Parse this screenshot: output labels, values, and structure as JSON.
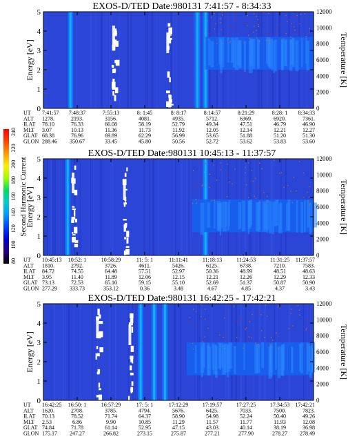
{
  "chart_data": {
    "type": "heatmap",
    "colorbar": {
      "label": "Second Harmonic Current",
      "ticks": [
        "240",
        "220",
        "200",
        "180",
        "160",
        "140",
        "120",
        "100",
        "80"
      ],
      "colors": [
        "#ff0000",
        "#ff4400",
        "#ff9900",
        "#ffee00",
        "#99ff00",
        "#00dd66",
        "#00cccc",
        "#0099ff",
        "#0044ff",
        "#0000cc",
        "#220088",
        "#000000"
      ]
    },
    "panels": [
      {
        "title": "EXOS-D/TED   Date:980131   7:41:57 - 8:34:33",
        "ylabel": "Energy [eV]",
        "y2label": "Temperature [K]",
        "yticks": [
          "0",
          "1",
          "2",
          "3",
          "4",
          "5"
        ],
        "y2ticks": [
          "0",
          "2000",
          "4000",
          "6000",
          "8000",
          "10000",
          "12000"
        ],
        "row_labels": [
          "UT",
          "ALT",
          "ILAT",
          "MLT",
          "GLAT",
          "GLON"
        ],
        "columns": [
          [
            "7:41:57",
            "1278.",
            "78.10",
            "3.07",
            "68.38",
            "288.46"
          ],
          [
            "7:48:37",
            "2193.",
            "76.33",
            "10.13",
            "76.96",
            "350.67"
          ],
          [
            "7:55:13",
            "3156.",
            "66.08",
            "11.36",
            "69.89",
            "33.45"
          ],
          [
            "8: 1:45",
            "4081.",
            "58.19",
            "11.73",
            "62.29",
            "45.80"
          ],
          [
            "8: 8:17",
            "4935.",
            "52.79",
            "11.92",
            "56.99",
            "50.56"
          ],
          [
            "8:14:57",
            "5712.",
            "49.34",
            "12.05",
            "53.65",
            "52.72"
          ],
          [
            "8:21:29",
            "6369.",
            "47.51",
            "12.14",
            "51.88",
            "53.62"
          ],
          [
            "8:28: 1",
            "6920.",
            "46.79",
            "12.21",
            "51.20",
            "53.83"
          ],
          [
            "8:34:33",
            "7361.",
            "46.90",
            "12.27",
            "51.30",
            "53.60"
          ]
        ],
        "features": {
          "white_streaks_frac": [
            0.26,
            0.46
          ],
          "bright_bands_frac": [
            0.1,
            0.57,
            0.6
          ],
          "blob_start_frac": 0.6,
          "blob_energy": 3.0
        }
      },
      {
        "title": "EXOS-D/TED   Date:980131   10:45:13 - 11:37:57",
        "ylabel": "Energy [eV]",
        "y2label": "Temperature [K]",
        "yticks": [
          "0",
          "1",
          "2",
          "3",
          "4",
          "5"
        ],
        "y2ticks": [
          "0",
          "2000",
          "4000",
          "6000",
          "8000",
          "10000",
          "12000"
        ],
        "row_labels": [
          "UT",
          "ALT",
          "ILAT",
          "MLT",
          "GLAT",
          "GLON"
        ],
        "columns": [
          [
            "10:45:13",
            "1810.",
            "84.72",
            "3.95",
            "73.13",
            "277.29"
          ],
          [
            "10:52: 1",
            "2792.",
            "74.55",
            "11.40",
            "72.53",
            "333.73"
          ],
          [
            "10:58:29",
            "3726.",
            "64.48",
            "11.89",
            "65.10",
            "353.12"
          ],
          [
            "11: 5: 1",
            "4611.",
            "57.51",
            "12.06",
            "59.15",
            "0.36"
          ],
          [
            "11:11:41",
            "5426.",
            "52.97",
            "12.15",
            "55.10",
            "3.48"
          ],
          [
            "11:18:13",
            "6125.",
            "50.36",
            "12.21",
            "52.69",
            "4.67"
          ],
          [
            "11:24:53",
            "6738.",
            "48.99",
            "12.26",
            "51.37",
            "4.85"
          ],
          [
            "11:31:25",
            "7210.",
            "48.51",
            "12.29",
            "50.87",
            "4.37"
          ],
          [
            "11:37:57",
            "7583.",
            "48.63",
            "12.33",
            "50.90",
            "3.43"
          ]
        ],
        "features": {
          "white_streaks_frac": [
            0.11,
            0.3
          ],
          "bright_bands_frac": [
            0.09,
            0.6
          ],
          "blob_start_frac": 0.55,
          "blob_energy": 2.2
        }
      },
      {
        "title": "EXOS-D/TED   Date:980131   16:42:25 - 17:42:21",
        "ylabel": "Energy [eV]",
        "y2label": "Temperature [K]",
        "yticks": [
          "0",
          "1",
          "2",
          "3",
          "4",
          "5"
        ],
        "y2ticks": [
          "0",
          "2000",
          "4000",
          "6000",
          "8000",
          "10000",
          "12000"
        ],
        "row_labels": [
          "UT",
          "ALT",
          "ILAT",
          "MLT",
          "GLAT",
          "GLON"
        ],
        "columns": [
          [
            "16:42:25",
            "1620.",
            "70.13",
            "2.53",
            "74.84",
            "175.17"
          ],
          [
            "16:50: 1",
            "2708.",
            "78.52",
            "6.86",
            "71.78",
            "247.27"
          ],
          [
            "16:57:29",
            "3785.",
            "71.74",
            "9.90",
            "61.14",
            "266.82"
          ],
          [
            "17: 5: 1",
            "4794.",
            "64.37",
            "10.85",
            "52.95",
            "273.15"
          ],
          [
            "17:12:29",
            "5676.",
            "58.90",
            "11.29",
            "47.15",
            "275.87"
          ],
          [
            "17:19:57",
            "6425.",
            "54.98",
            "11.57",
            "43.03",
            "277.21"
          ],
          [
            "17:27:25",
            "7033.",
            "52.24",
            "11.77",
            "40.14",
            "277.90"
          ],
          [
            "17:34:53",
            "7500.",
            "50.40",
            "11.93",
            "38.19",
            "278.27"
          ],
          [
            "17:42:21",
            "7823.",
            "49.26",
            "12.08",
            "36.98",
            "278.49"
          ]
        ],
        "features": {
          "white_streaks_frac": [
            0.2,
            0.32
          ],
          "bright_bands_frac": [
            0.36,
            0.41,
            0.45
          ],
          "blob_start_frac": 0.53,
          "blob_energy": 2.3
        }
      }
    ]
  }
}
